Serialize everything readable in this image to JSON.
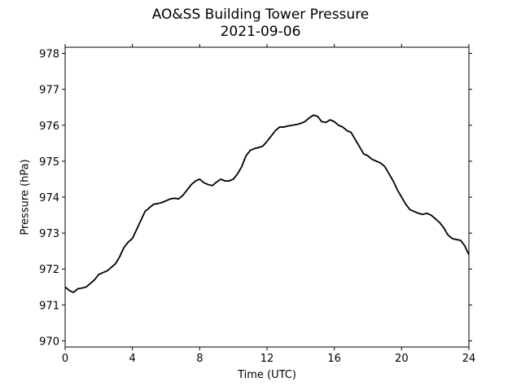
{
  "chart_data": {
    "type": "line",
    "title": "AO&SS Building Tower Pressure",
    "subtitle": "2021-09-06",
    "xlabel": "Time (UTC)",
    "ylabel": "Pressure (hPa)",
    "xlim": [
      0,
      24
    ],
    "ylim": [
      969.83,
      978.17
    ],
    "xticks": [
      0,
      4,
      8,
      12,
      16,
      20,
      24
    ],
    "yticks": [
      970,
      971,
      972,
      973,
      974,
      975,
      976,
      977,
      978
    ],
    "grid": false,
    "line_color": "#000000",
    "series": [
      {
        "x": [
          0,
          0.25,
          0.5,
          0.75,
          1.0,
          1.25,
          1.5,
          1.75,
          2.0,
          2.25,
          2.5,
          2.75,
          3.0,
          3.25,
          3.5,
          3.75,
          4.0,
          4.25,
          4.5,
          4.75,
          5.0,
          5.25,
          5.5,
          5.75,
          6.0,
          6.25,
          6.5,
          6.75,
          7.0,
          7.25,
          7.5,
          7.75,
          8.0,
          8.25,
          8.5,
          8.75,
          9.0,
          9.25,
          9.5,
          9.75,
          10.0,
          10.25,
          10.5,
          10.75,
          11.0,
          11.25,
          11.5,
          11.75,
          12.0,
          12.25,
          12.5,
          12.75,
          13.0,
          13.25,
          13.5,
          13.75,
          14.0,
          14.25,
          14.5,
          14.75,
          15.0,
          15.25,
          15.5,
          15.75,
          16.0,
          16.25,
          16.5,
          16.75,
          17.0,
          17.25,
          17.5,
          17.75,
          18.0,
          18.25,
          18.5,
          18.75,
          19.0,
          19.25,
          19.5,
          19.75,
          20.0,
          20.25,
          20.5,
          20.75,
          21.0,
          21.25,
          21.5,
          21.75,
          22.0,
          22.25,
          22.5,
          22.75,
          23.0,
          23.25,
          23.5,
          23.75,
          24.0
        ],
        "values": [
          971.5,
          971.4,
          971.35,
          971.45,
          971.47,
          971.5,
          971.6,
          971.7,
          971.85,
          971.9,
          971.95,
          972.05,
          972.15,
          972.35,
          972.6,
          972.75,
          972.85,
          973.1,
          973.35,
          973.6,
          973.7,
          973.8,
          973.82,
          973.85,
          973.9,
          973.95,
          973.97,
          973.95,
          974.05,
          974.2,
          974.35,
          974.45,
          974.5,
          974.4,
          974.35,
          974.32,
          974.42,
          974.5,
          974.45,
          974.45,
          974.5,
          974.65,
          974.85,
          975.15,
          975.3,
          975.35,
          975.38,
          975.42,
          975.55,
          975.7,
          975.85,
          975.95,
          975.95,
          975.98,
          976.0,
          976.02,
          976.05,
          976.1,
          976.2,
          976.28,
          976.25,
          976.1,
          976.08,
          976.15,
          976.1,
          976.0,
          975.95,
          975.85,
          975.8,
          975.6,
          975.4,
          975.2,
          975.15,
          975.05,
          975.0,
          974.95,
          974.85,
          974.65,
          974.45,
          974.2,
          974.0,
          973.8,
          973.65,
          973.6,
          973.55,
          973.52,
          973.55,
          973.5,
          973.4,
          973.3,
          973.15,
          972.95,
          972.85,
          972.82,
          972.8,
          972.65,
          972.4
        ]
      }
    ]
  }
}
